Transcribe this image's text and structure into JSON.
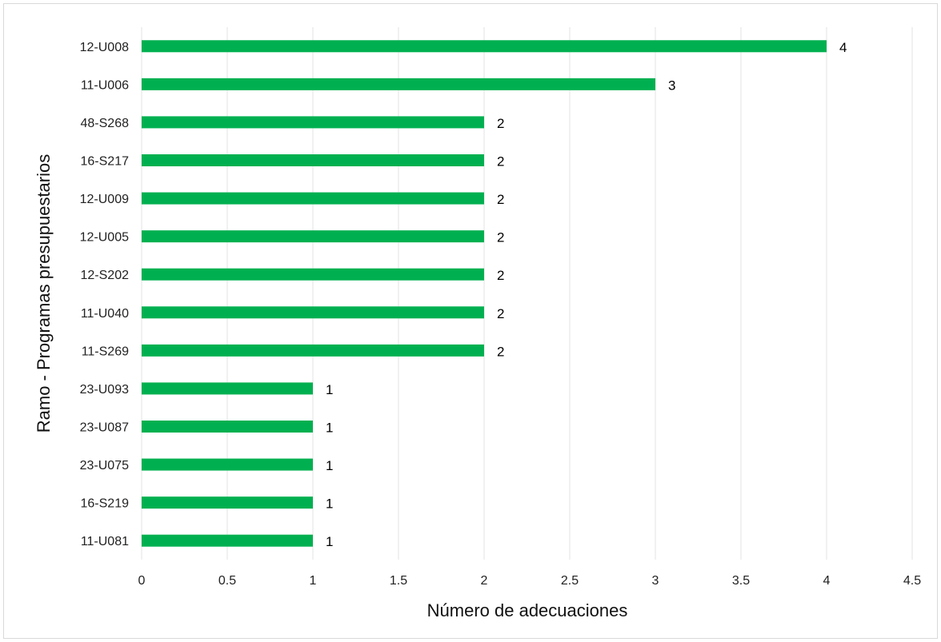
{
  "chart_data": {
    "type": "bar",
    "orientation": "horizontal",
    "categories": [
      "12-U008",
      "11-U006",
      "48-S268",
      "16-S217",
      "12-U009",
      "12-U005",
      "12-S202",
      "11-U040",
      "11-S269",
      "23-U093",
      "23-U087",
      "23-U075",
      "16-S219",
      "11-U081"
    ],
    "values": [
      4,
      3,
      2,
      2,
      2,
      2,
      2,
      2,
      2,
      1,
      1,
      1,
      1,
      1
    ],
    "xlabel": "Número de adecuaciones",
    "ylabel": "Ramo - Programas presupuestarios",
    "xlim": [
      0,
      4.5
    ],
    "xticks": [
      "0",
      "0.5",
      "1",
      "1.5",
      "2",
      "2.5",
      "3",
      "3.5",
      "4",
      "4.5"
    ],
    "bar_color": "#00b050",
    "grid": "vertical",
    "legend": "none"
  }
}
